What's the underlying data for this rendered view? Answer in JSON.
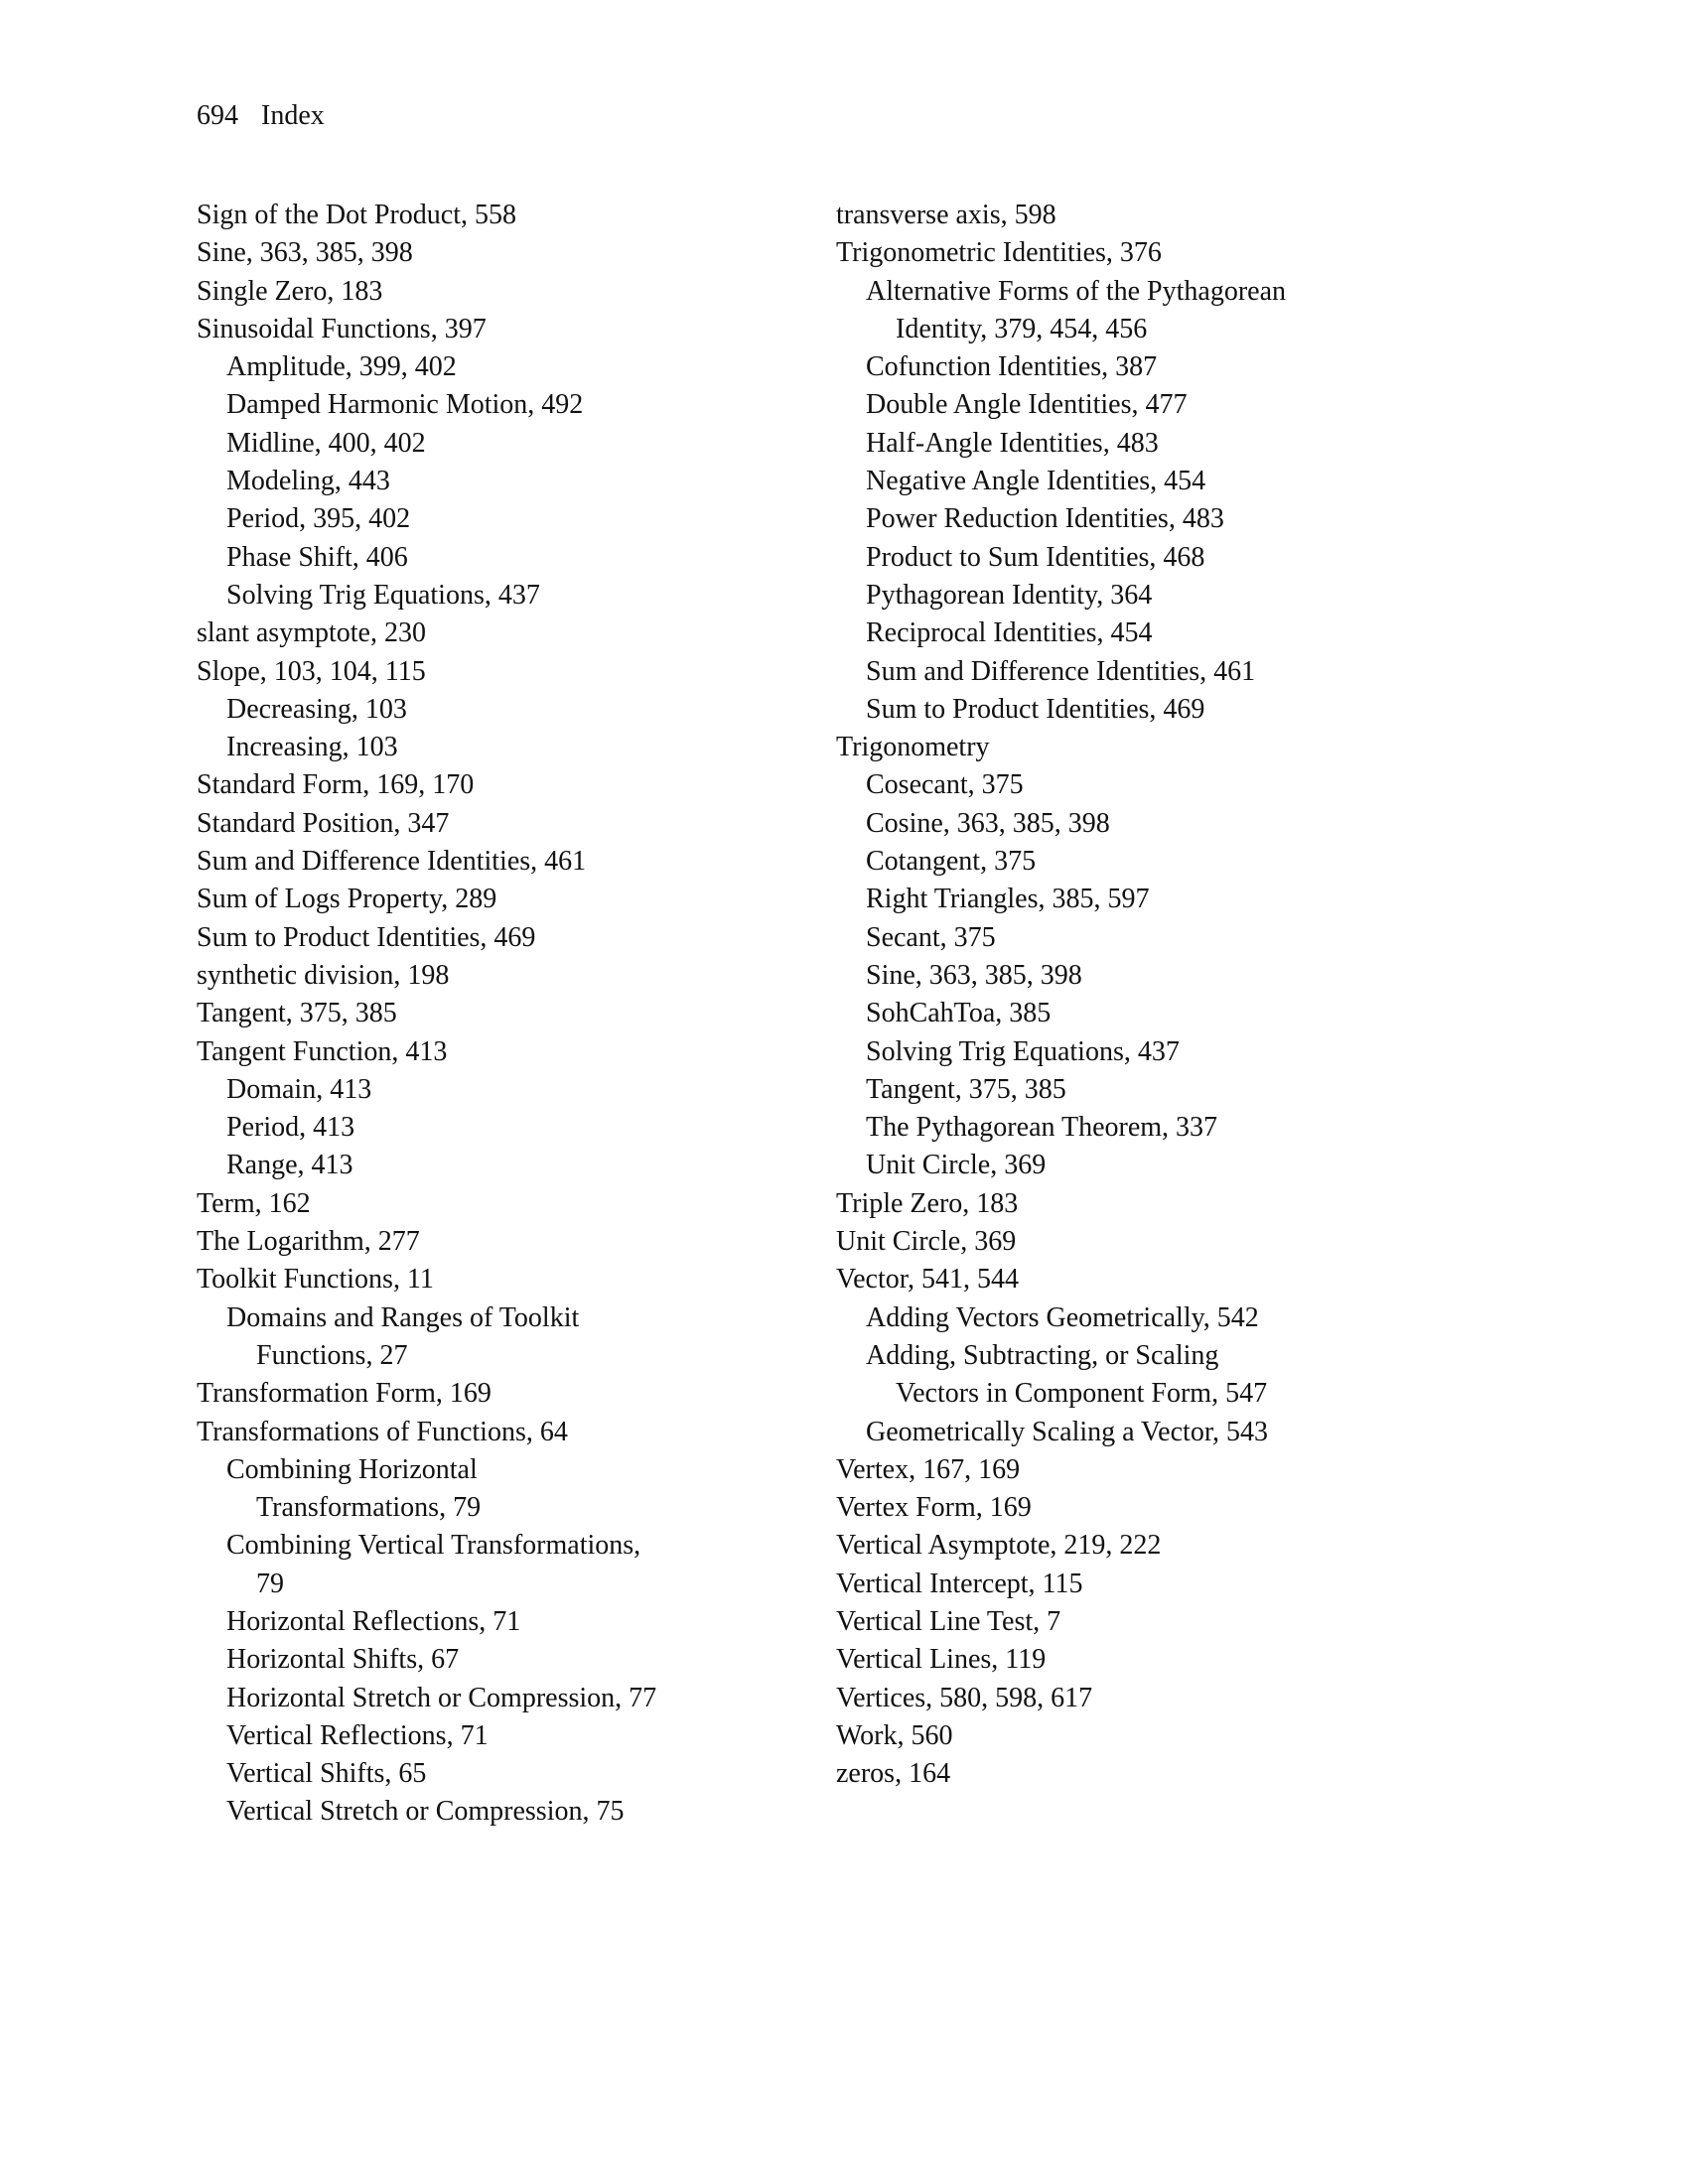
{
  "header": {
    "page_number": "694",
    "section": "Index"
  },
  "left": [
    {
      "t": "Sign of the Dot Product, 558",
      "l": 0
    },
    {
      "t": "Sine, 363, 385, 398",
      "l": 0
    },
    {
      "t": "Single Zero, 183",
      "l": 0
    },
    {
      "t": "Sinusoidal Functions, 397",
      "l": 0
    },
    {
      "t": "Amplitude, 399, 402",
      "l": 1
    },
    {
      "t": "Damped Harmonic Motion, 492",
      "l": 1
    },
    {
      "t": "Midline, 400, 402",
      "l": 1
    },
    {
      "t": "Modeling, 443",
      "l": 1
    },
    {
      "t": "Period, 395, 402",
      "l": 1
    },
    {
      "t": "Phase Shift, 406",
      "l": 1
    },
    {
      "t": "Solving Trig Equations, 437",
      "l": 1
    },
    {
      "t": "slant asymptote, 230",
      "l": 0
    },
    {
      "t": "Slope, 103, 104, 115",
      "l": 0
    },
    {
      "t": "Decreasing, 103",
      "l": 1
    },
    {
      "t": "Increasing, 103",
      "l": 1
    },
    {
      "t": "Standard Form, 169, 170",
      "l": 0
    },
    {
      "t": "Standard Position, 347",
      "l": 0
    },
    {
      "t": "Sum and Difference Identities, 461",
      "l": 0
    },
    {
      "t": "Sum of Logs Property, 289",
      "l": 0
    },
    {
      "t": "Sum to Product Identities, 469",
      "l": 0
    },
    {
      "t": "synthetic division, 198",
      "l": 0
    },
    {
      "t": "Tangent, 375, 385",
      "l": 0
    },
    {
      "t": "Tangent Function, 413",
      "l": 0
    },
    {
      "t": "Domain, 413",
      "l": 1
    },
    {
      "t": "Period, 413",
      "l": 1
    },
    {
      "t": "Range, 413",
      "l": 1
    },
    {
      "t": "Term, 162",
      "l": 0
    },
    {
      "t": "The Logarithm, 277",
      "l": 0
    },
    {
      "t": "Toolkit Functions, 11",
      "l": 0
    },
    {
      "t": "Domains and Ranges of Toolkit",
      "l": 1
    },
    {
      "t": "Functions, 27",
      "l": 2
    },
    {
      "t": "Transformation Form, 169",
      "l": 0
    },
    {
      "t": "Transformations of Functions, 64",
      "l": 0
    },
    {
      "t": "Combining Horizontal",
      "l": 1
    },
    {
      "t": "Transformations, 79",
      "l": 2
    },
    {
      "t": "Combining Vertical Transformations,",
      "l": 1
    },
    {
      "t": "79",
      "l": 2
    },
    {
      "t": "Horizontal Reflections, 71",
      "l": 1
    },
    {
      "t": "Horizontal Shifts, 67",
      "l": 1
    },
    {
      "t": "Horizontal Stretch or Compression, 77",
      "l": 1
    },
    {
      "t": "Vertical Reflections, 71",
      "l": 1
    },
    {
      "t": "Vertical Shifts, 65",
      "l": 1
    },
    {
      "t": "Vertical Stretch or Compression, 75",
      "l": 1
    }
  ],
  "right": [
    {
      "t": "transverse axis, 598",
      "l": 0
    },
    {
      "t": "Trigonometric Identities, 376",
      "l": 0
    },
    {
      "t": "Alternative Forms of the Pythagorean",
      "l": 1
    },
    {
      "t": "Identity, 379, 454, 456",
      "l": 2
    },
    {
      "t": "Cofunction Identities, 387",
      "l": 1
    },
    {
      "t": "Double Angle Identities, 477",
      "l": 1
    },
    {
      "t": "Half-Angle Identities, 483",
      "l": 1
    },
    {
      "t": "Negative Angle Identities, 454",
      "l": 1
    },
    {
      "t": "Power Reduction Identities, 483",
      "l": 1
    },
    {
      "t": "Product to Sum Identities, 468",
      "l": 1
    },
    {
      "t": "Pythagorean Identity, 364",
      "l": 1
    },
    {
      "t": "Reciprocal Identities, 454",
      "l": 1
    },
    {
      "t": "Sum and Difference Identities, 461",
      "l": 1
    },
    {
      "t": "Sum to Product Identities, 469",
      "l": 1
    },
    {
      "t": "Trigonometry",
      "l": 0
    },
    {
      "t": "Cosecant, 375",
      "l": 1
    },
    {
      "t": "Cosine, 363, 385, 398",
      "l": 1
    },
    {
      "t": "Cotangent, 375",
      "l": 1
    },
    {
      "t": "Right Triangles, 385, 597",
      "l": 1
    },
    {
      "t": "Secant, 375",
      "l": 1
    },
    {
      "t": "Sine, 363, 385, 398",
      "l": 1
    },
    {
      "t": "SohCahToa, 385",
      "l": 1
    },
    {
      "t": "Solving Trig Equations, 437",
      "l": 1
    },
    {
      "t": "Tangent, 375, 385",
      "l": 1
    },
    {
      "t": "The Pythagorean Theorem, 337",
      "l": 1
    },
    {
      "t": "Unit Circle, 369",
      "l": 1
    },
    {
      "t": "Triple Zero, 183",
      "l": 0
    },
    {
      "t": "Unit Circle, 369",
      "l": 0
    },
    {
      "t": "Vector, 541, 544",
      "l": 0
    },
    {
      "t": "Adding Vectors Geometrically, 542",
      "l": 1
    },
    {
      "t": "Adding, Subtracting, or Scaling",
      "l": 1
    },
    {
      "t": "Vectors in Component Form, 547",
      "l": 2
    },
    {
      "t": "Geometrically Scaling a Vector, 543",
      "l": 1
    },
    {
      "t": "Vertex, 167, 169",
      "l": 0
    },
    {
      "t": "Vertex Form, 169",
      "l": 0
    },
    {
      "t": "Vertical Asymptote, 219, 222",
      "l": 0
    },
    {
      "t": "Vertical Intercept, 115",
      "l": 0
    },
    {
      "t": "Vertical Line Test, 7",
      "l": 0
    },
    {
      "t": "Vertical Lines, 119",
      "l": 0
    },
    {
      "t": "Vertices, 580, 598, 617",
      "l": 0
    },
    {
      "t": "Work, 560",
      "l": 0
    },
    {
      "t": "zeros, 164",
      "l": 0
    }
  ]
}
